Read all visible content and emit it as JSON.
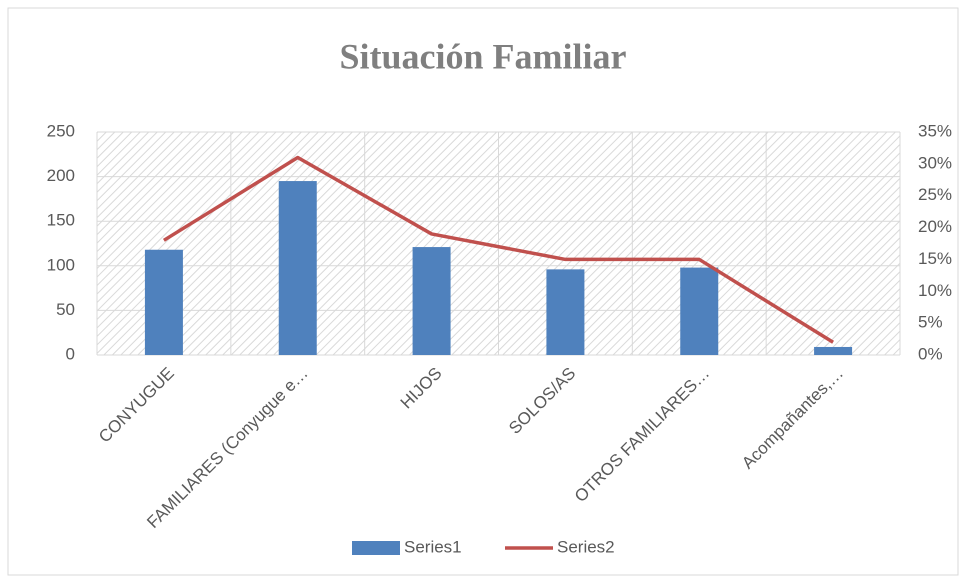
{
  "chart_data": {
    "type": "bar",
    "title": "Situación Familiar",
    "categories": [
      "CONYUGUE",
      "FAMILIARES (Conyugue e…",
      "HIJOS",
      "SOLOS/AS",
      "OTROS FAMILIARES…",
      "Acompañantes,…"
    ],
    "series": [
      {
        "name": "Series1",
        "type": "bar",
        "color": "#4f81bd",
        "values": [
          118,
          195,
          121,
          96,
          98,
          9
        ]
      },
      {
        "name": "Series2",
        "type": "line",
        "axis": "y2",
        "color": "#c0504d",
        "values": [
          18,
          31,
          19,
          15,
          15,
          2
        ]
      }
    ],
    "ylim": [
      0,
      250
    ],
    "yticks": [
      0,
      50,
      100,
      150,
      200,
      250
    ],
    "y2lim": [
      0,
      35
    ],
    "y2ticks": [
      {
        "value": 0,
        "label": "0%"
      },
      {
        "value": 5,
        "label": "5%"
      },
      {
        "value": 10,
        "label": "10%"
      },
      {
        "value": 15,
        "label": "15%"
      },
      {
        "value": 20,
        "label": "20%"
      },
      {
        "value": 25,
        "label": "25%"
      },
      {
        "value": 30,
        "label": "30%"
      },
      {
        "value": 35,
        "label": "35%"
      }
    ],
    "grid": true,
    "legend": "bottom"
  }
}
